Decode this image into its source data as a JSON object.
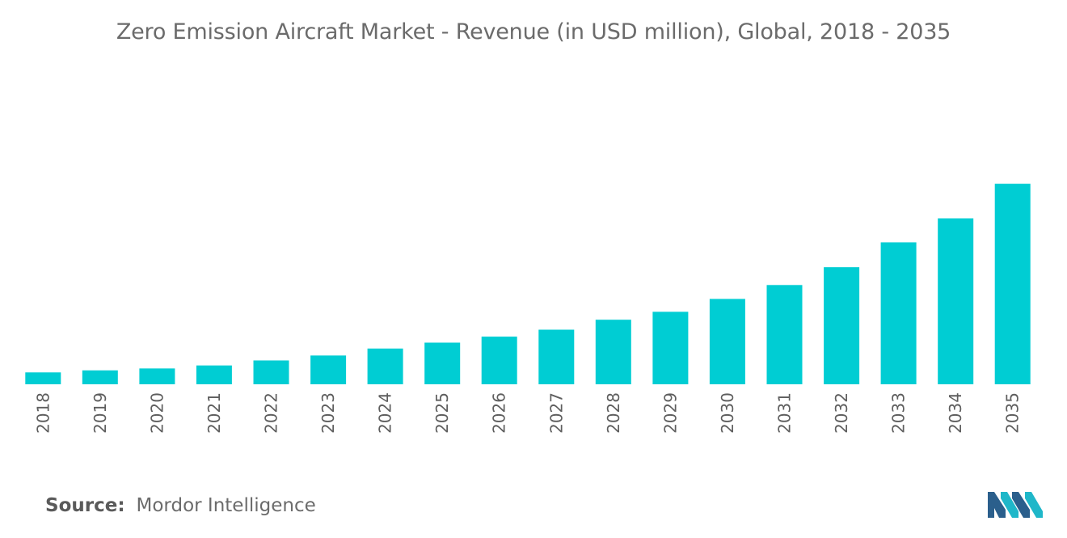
{
  "header": {
    "title": "Zero Emission Aircraft Market - Revenue (in USD million), Global, 2018 - 2035"
  },
  "footer": {
    "source_label": "Source:",
    "source_value": "Mordor Intelligence"
  },
  "logo": {
    "icon": "mordor-intelligence-logo-icon"
  },
  "colors": {
    "bar": "#00CDD3",
    "logo_dark": "#2B5F8C",
    "logo_light": "#1FB7C9"
  },
  "chart_data": {
    "type": "bar",
    "title": "Zero Emission Aircraft Market - Revenue (in USD million), Global, 2018 - 2035",
    "xlabel": "",
    "ylabel": "",
    "grid": false,
    "legend": "none",
    "categories": [
      "2018",
      "2019",
      "2020",
      "2021",
      "2022",
      "2023",
      "2024",
      "2025",
      "2026",
      "2027",
      "2028",
      "2029",
      "2030",
      "2031",
      "2032",
      "2033",
      "2034",
      "2035"
    ],
    "values": [
      6,
      7,
      8,
      9.5,
      12,
      14.5,
      18,
      21,
      24,
      27.5,
      32.5,
      36.5,
      43,
      50,
      59,
      71.5,
      83.5,
      101
    ],
    "ylim": [
      0,
      110
    ],
    "y_axis_visible": false
  }
}
